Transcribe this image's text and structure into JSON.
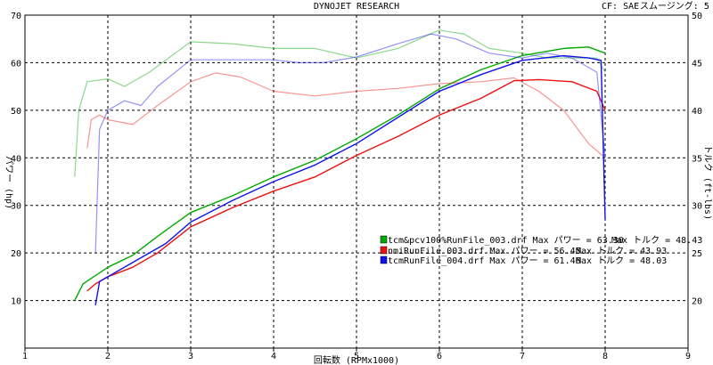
{
  "header": {
    "title": "DYNOJET RESEARCH",
    "cf": "CF: SAE",
    "smoothing": "スムージング: 5"
  },
  "chart_data": {
    "type": "line",
    "xlabel": "回転数 (RPMx1000)",
    "ylabel_left": "パワー (hp)",
    "ylabel_right": "トルク (ft-lbs)",
    "xlim": [
      1,
      9
    ],
    "ylim_left": [
      0,
      70
    ],
    "ylim_right": [
      15,
      50
    ],
    "x_ticks": [
      1,
      2,
      3,
      4,
      5,
      6,
      7,
      8,
      9
    ],
    "y_ticks_left": [
      10,
      20,
      30,
      40,
      50,
      60,
      70
    ],
    "y_ticks_right": [
      20,
      25,
      30,
      35,
      40,
      45,
      50
    ],
    "grid": true,
    "legend_position": "bottom-right",
    "legend": [
      {
        "text": "tcm&pcv100%RunFile_003.drf Max パワー = 63.30",
        "torque_text": "Max トルク = 48.43",
        "color": "#00aa00"
      },
      {
        "text": "nmiRunFile_003.drf Max パワー = 56.45",
        "torque_text": "Max トルク = 43.93",
        "color": "#ee1111"
      },
      {
        "text": "tcmRunFile_004.drf Max パワー = 61.46",
        "torque_text": "Max トルク = 48.03",
        "color": "#1111ee"
      }
    ],
    "series": [
      {
        "name": "tcm&pcv100%RunFile_003.drf",
        "color": "#00aa00",
        "power": {
          "x": [
            1.6,
            1.7,
            2.0,
            2.3,
            2.6,
            3.0,
            3.5,
            4.0,
            4.5,
            5.0,
            5.5,
            6.0,
            6.5,
            7.0,
            7.5,
            7.8,
            8.0
          ],
          "y": [
            10,
            13.5,
            17,
            19.5,
            23.5,
            28.5,
            32,
            36,
            39.5,
            44,
            49,
            54.5,
            58.5,
            61.5,
            63,
            63.3,
            62
          ]
        },
        "torque": {
          "x": [
            1.6,
            1.65,
            1.75,
            2.0,
            2.2,
            2.5,
            3.0,
            3.5,
            4.0,
            4.5,
            5.0,
            5.5,
            6.0,
            6.3,
            6.6,
            7.0,
            7.3,
            7.6,
            7.9,
            8.0
          ],
          "y": [
            33,
            40,
            43,
            43.3,
            42.5,
            44,
            47.2,
            47,
            46.5,
            46.5,
            45.5,
            46.5,
            48.43,
            48,
            46.5,
            46,
            45.5,
            45.5,
            45.5,
            44
          ]
        }
      },
      {
        "name": "nmiRunFile_003.drf",
        "color": "#ee1111",
        "power": {
          "x": [
            1.75,
            1.85,
            2.0,
            2.3,
            2.6,
            3.0,
            3.5,
            4.0,
            4.5,
            5.0,
            5.5,
            6.0,
            6.5,
            6.9,
            7.2,
            7.6,
            7.9,
            8.0
          ],
          "y": [
            12,
            13.5,
            15,
            17,
            20,
            25.5,
            29.5,
            33,
            36,
            40.5,
            44.5,
            49,
            52.5,
            56.2,
            56.45,
            56,
            54,
            50
          ]
        },
        "torque": {
          "x": [
            1.75,
            1.8,
            1.9,
            2.0,
            2.3,
            2.6,
            3.0,
            3.3,
            3.6,
            4.0,
            4.5,
            5.0,
            5.5,
            6.0,
            6.5,
            6.9,
            7.2,
            7.5,
            7.8,
            8.0
          ],
          "y": [
            36,
            39,
            39.5,
            39,
            38.5,
            40.5,
            43,
            43.93,
            43.5,
            42,
            41.5,
            42,
            42.3,
            42.8,
            43,
            43.4,
            42,
            40,
            36.5,
            35
          ]
        }
      },
      {
        "name": "tcmRunFile_004.drf",
        "color": "#1111ee",
        "power": {
          "x": [
            1.85,
            1.9,
            2.0,
            2.4,
            2.7,
            3.0,
            3.5,
            4.0,
            4.5,
            5.0,
            5.5,
            6.0,
            6.5,
            7.0,
            7.5,
            7.8,
            7.95,
            8.0
          ],
          "y": [
            9,
            14,
            15,
            19,
            22,
            26.5,
            31,
            35,
            38.5,
            43,
            48.5,
            54,
            57.5,
            60.5,
            61.46,
            61,
            60.5,
            27
          ]
        },
        "torque": {
          "x": [
            1.85,
            1.9,
            2.0,
            2.2,
            2.4,
            2.6,
            3.0,
            3.3,
            3.6,
            4.0,
            4.3,
            4.6,
            5.0,
            5.5,
            5.9,
            6.2,
            6.6,
            7.0,
            7.3,
            7.6,
            7.9,
            8.0
          ],
          "y": [
            25,
            38,
            40,
            41,
            40.5,
            42.5,
            45.3,
            45.3,
            45.3,
            45.3,
            45,
            45,
            45.6,
            47,
            48.03,
            47.5,
            46,
            45.5,
            46,
            45.5,
            44,
            35
          ]
        }
      }
    ]
  }
}
